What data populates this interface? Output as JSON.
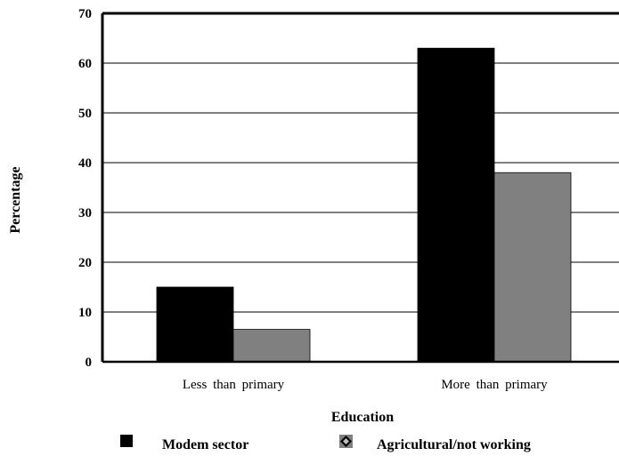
{
  "chart_data": {
    "type": "bar",
    "categories": [
      "Less than primary",
      "More than primary"
    ],
    "series": [
      {
        "name": "Modem sector",
        "color": "#000000",
        "values": [
          15,
          63
        ]
      },
      {
        "name": "Agricultural/not working",
        "color": "#808080",
        "values": [
          6.5,
          38
        ]
      }
    ],
    "xlabel": "Education",
    "ylabel": "Percentage",
    "ylim": [
      0,
      70
    ],
    "yticks": [
      0,
      10,
      20,
      30,
      40,
      50,
      60,
      70
    ],
    "grid": true,
    "legend_position": "bottom"
  }
}
